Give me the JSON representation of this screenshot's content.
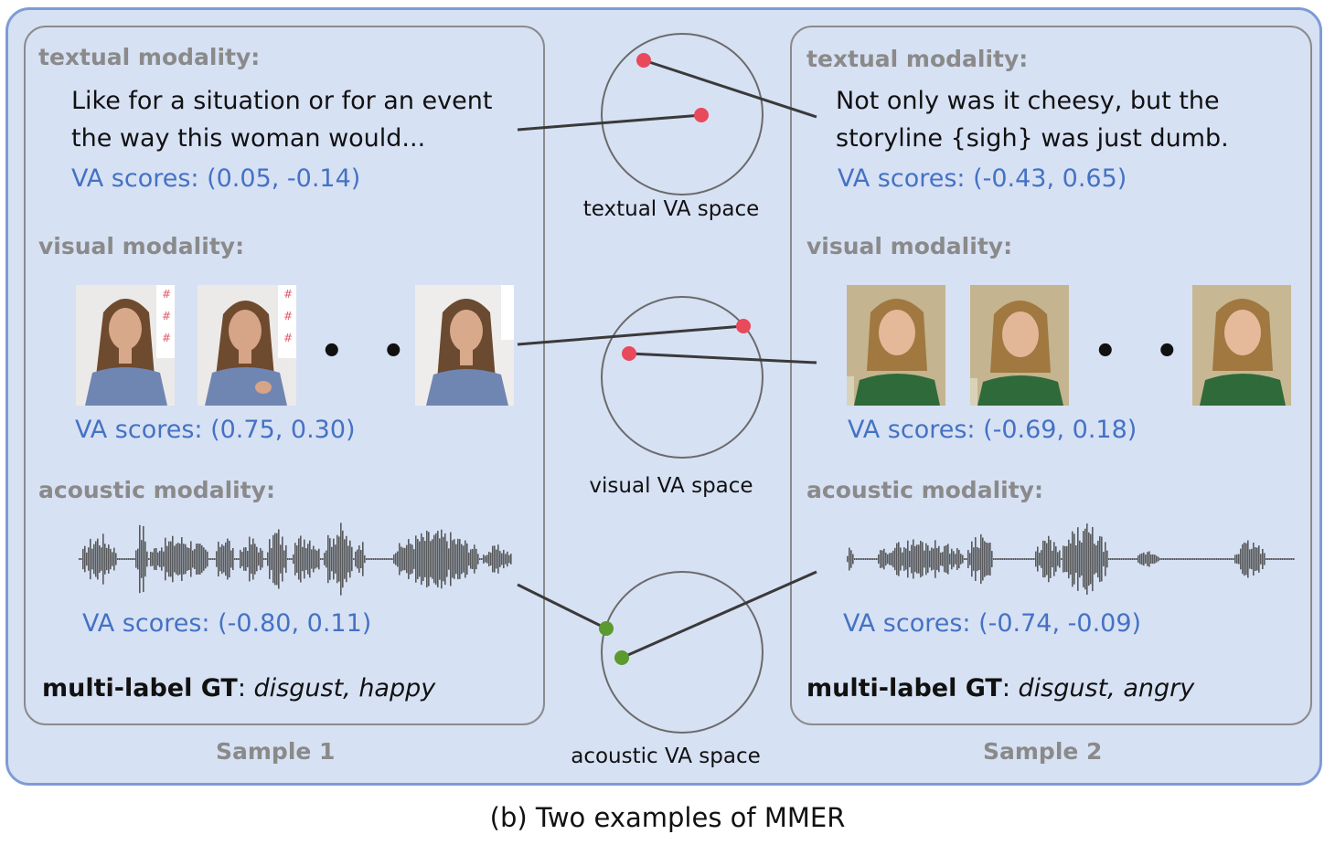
{
  "sample1": {
    "textual_title": "textual modality:",
    "quote_line1": "Like for a situation or for an event",
    "quote_line2": "the way this woman would...",
    "textual_va": "VA scores: (0.05, -0.14)",
    "visual_title": "visual modality:",
    "visual_va": "VA scores: (0.75, 0.30)",
    "acoustic_title": "acoustic modality:",
    "acoustic_va": "VA scores: (-0.80, 0.11)",
    "gt_label": "multi-label GT",
    "gt_sep": ": ",
    "gt_values": "disgust, happy",
    "label": "Sample 1"
  },
  "sample2": {
    "textual_title": "textual modality:",
    "quote_line1": "Not only was it cheesy, but the",
    "quote_line2": "storyline {sigh} was just dumb.",
    "textual_va": "VA scores: (-0.43, 0.65)",
    "visual_title": "visual modality:",
    "visual_va": "VA scores: (-0.69, 0.18)",
    "acoustic_title": "acoustic modality:",
    "acoustic_va": "VA scores: (-0.74, -0.09)",
    "gt_label": "multi-label GT",
    "gt_sep": ": ",
    "gt_values": "disgust, angry",
    "label": "Sample 2"
  },
  "spaces": {
    "textual": "textual VA space",
    "visual": "visual VA space",
    "acoustic": "acoustic VA space"
  },
  "ellipsis": "• • •",
  "caption": "(b) Two examples of MMER",
  "colors": {
    "panel_bg": "#d7e1f4",
    "panel_border": "#7f9bd6",
    "va_text": "#4472c4",
    "modality_title": "#8a8a8a",
    "text_point": "#e8495b",
    "visual_point": "#e8495b",
    "acoustic_point": "#5a9a2f",
    "waveform": "#58595b"
  }
}
